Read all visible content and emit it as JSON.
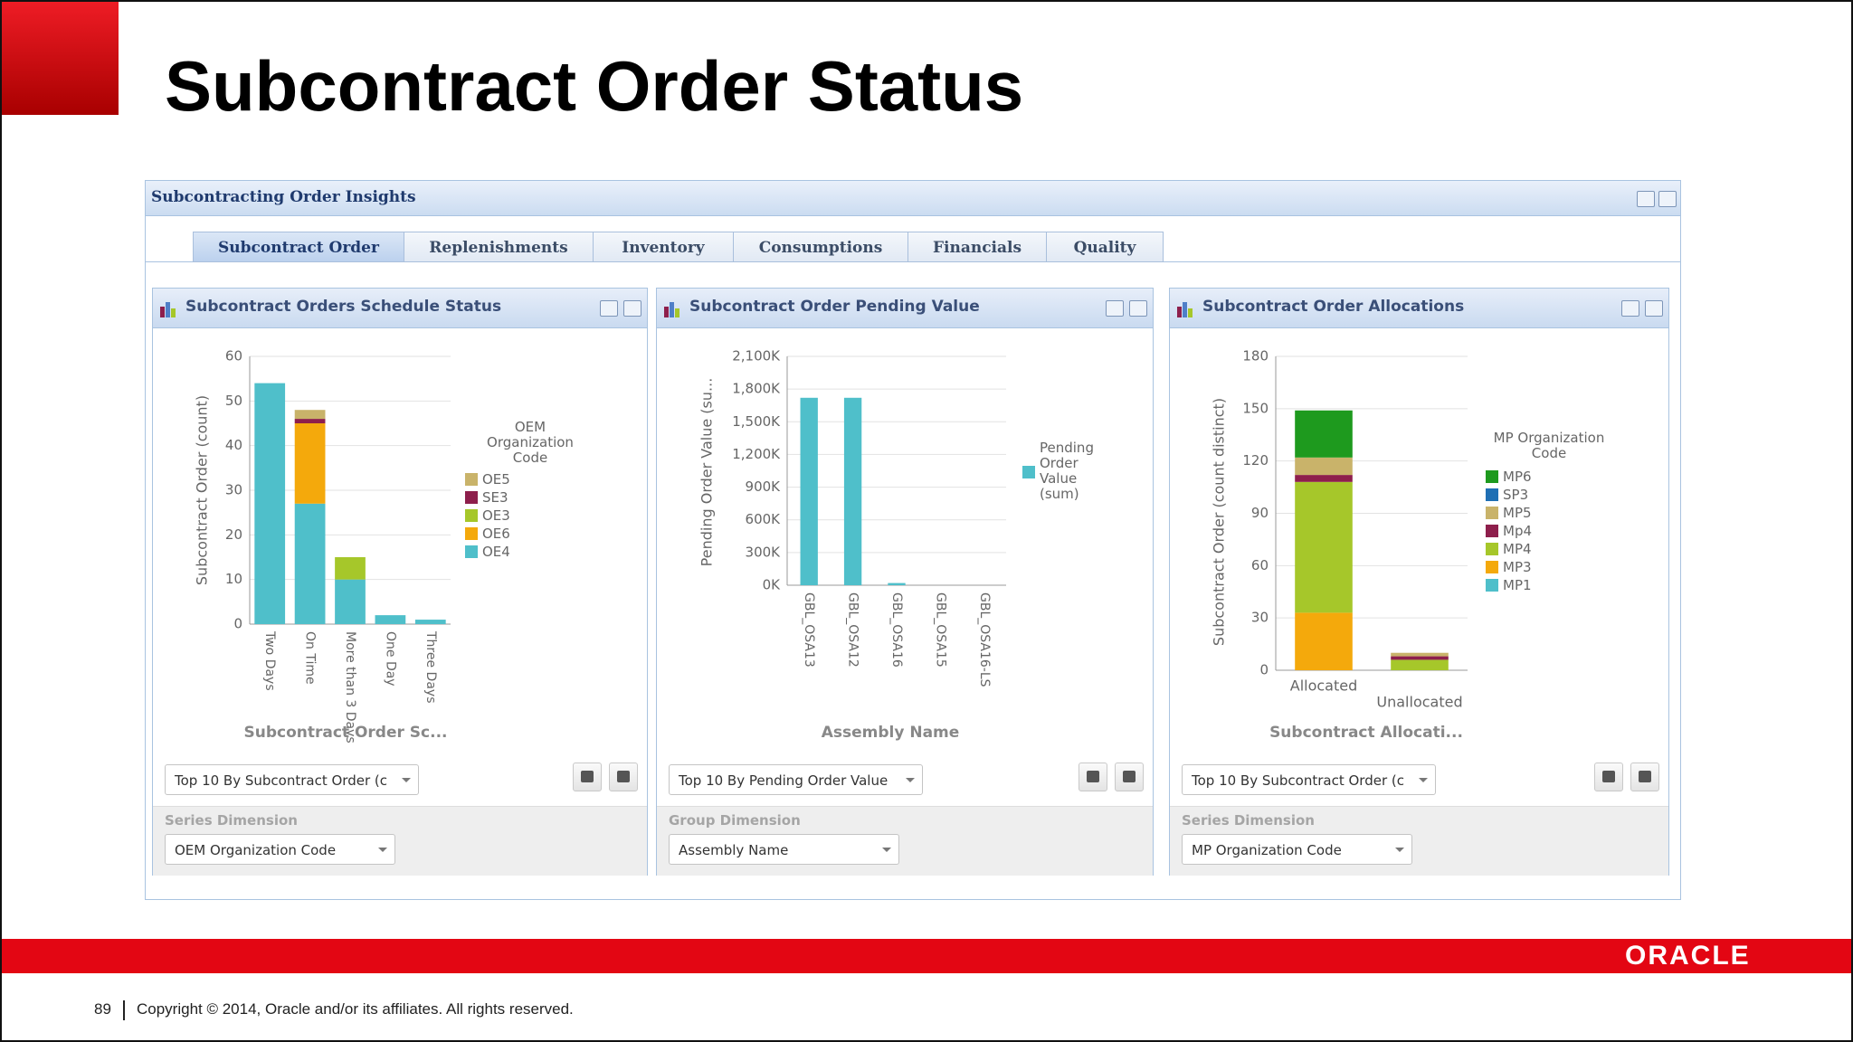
{
  "slide": {
    "title": "Subcontract Order Status",
    "page_number": 89,
    "copyright": "Copyright © 2014, Oracle and/or its affiliates. All rights reserved.",
    "logo": "ORACLE"
  },
  "panel": {
    "title": "Subcontracting Order Insights",
    "tabs": [
      "Subcontract Order",
      "Replenishments",
      "Inventory",
      "Consumptions",
      "Financials",
      "Quality"
    ]
  },
  "portlets": [
    {
      "selector": "Top 10 By Subcontract Order (c",
      "dimension_label": "Series Dimension",
      "dimension_value": "OEM Organization Code"
    },
    {
      "selector": "Top 10 By Pending Order Value",
      "dimension_label": "Group Dimension",
      "dimension_value": "Assembly Name"
    },
    {
      "selector": "Top 10 By Subcontract Order (c",
      "dimension_label": "Series Dimension",
      "dimension_value": "MP Organization Code"
    }
  ],
  "chart_data": [
    {
      "type": "bar",
      "stacked": true,
      "title": "Subcontract Orders Schedule Status",
      "x_label": "Subcontract Order Sc...",
      "y_label": "Subcontract Order (count)",
      "legend_title": "OEM Organization Code",
      "categories": [
        "Two Days",
        "On Time",
        "More than 3 Days",
        "One Day",
        "Three Days"
      ],
      "series": [
        {
          "name": "OE5",
          "color": "#c9b36a",
          "values": [
            0,
            2,
            0,
            0,
            0
          ]
        },
        {
          "name": "SE3",
          "color": "#8e1f4c",
          "values": [
            0,
            1,
            0,
            0,
            0
          ]
        },
        {
          "name": "OE3",
          "color": "#a6c72a",
          "values": [
            0,
            0,
            5,
            0,
            0
          ]
        },
        {
          "name": "OE6",
          "color": "#f4a90c",
          "values": [
            0,
            18,
            0,
            0,
            0
          ]
        },
        {
          "name": "OE4",
          "color": "#4fbfca",
          "values": [
            54,
            27,
            10,
            2,
            1
          ]
        }
      ],
      "ylim": [
        0,
        60
      ],
      "yticks": [
        0,
        10,
        20,
        30,
        40,
        50,
        60
      ],
      "grid": true
    },
    {
      "type": "bar",
      "stacked": false,
      "title": "Subcontract Order Pending Value",
      "x_label": "Assembly Name",
      "y_label": "Pending Order Value (su...",
      "categories": [
        "GBL_OSA13",
        "GBL_OSA12",
        "GBL_OSA16",
        "GBL_OSA15",
        "GBL_OSA16-LS"
      ],
      "series": [
        {
          "name": "Pending Order Value (sum)",
          "color": "#4fbfca",
          "values": [
            1720000,
            1720000,
            20000,
            0,
            0
          ]
        }
      ],
      "ylim": [
        0,
        2100000
      ],
      "yticks": [
        {
          "value": 0,
          "label": "0K"
        },
        {
          "value": 300000,
          "label": "300K"
        },
        {
          "value": 600000,
          "label": "600K"
        },
        {
          "value": 900000,
          "label": "900K"
        },
        {
          "value": 1200000,
          "label": "1,200K"
        },
        {
          "value": 1500000,
          "label": "1,500K"
        },
        {
          "value": 1800000,
          "label": "1,800K"
        },
        {
          "value": 2100000,
          "label": "2,100K"
        }
      ],
      "grid": true
    },
    {
      "type": "bar",
      "stacked": true,
      "title": "Subcontract Order Allocations",
      "x_label": "Subcontract Allocati...",
      "y_label": "Subcontract Order (count distinct)",
      "legend_title": "MP Organization Code",
      "categories": [
        "Allocated",
        "Unallocated"
      ],
      "series": [
        {
          "name": "MP6",
          "color": "#1e9a1e",
          "values": [
            27,
            0
          ]
        },
        {
          "name": "SP3",
          "color": "#1f6fb4",
          "values": [
            0,
            0
          ]
        },
        {
          "name": "MP5",
          "color": "#c9b36a",
          "values": [
            10,
            2
          ]
        },
        {
          "name": "Mp4",
          "color": "#8e1f4c",
          "values": [
            4,
            2
          ]
        },
        {
          "name": "MP4",
          "color": "#a6c72a",
          "values": [
            75,
            6
          ]
        },
        {
          "name": "MP3",
          "color": "#f4a90c",
          "values": [
            33,
            0
          ]
        },
        {
          "name": "MP1",
          "color": "#4fbfca",
          "values": [
            0,
            0
          ]
        }
      ],
      "ylim": [
        0,
        180
      ],
      "yticks": [
        0,
        30,
        60,
        90,
        120,
        150,
        180
      ],
      "grid": true
    }
  ]
}
